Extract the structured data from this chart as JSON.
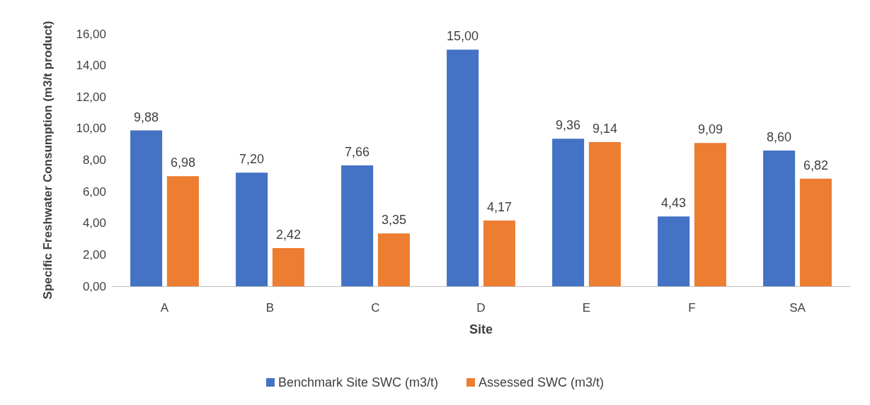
{
  "chart_data": {
    "type": "bar",
    "xlabel": "Site",
    "ylabel": "Specific Freshwater Consumption (m3/t product)",
    "categories": [
      "A",
      "B",
      "C",
      "D",
      "E",
      "F",
      "SA"
    ],
    "series": [
      {
        "name": "Benchmark Site SWC (m3/t)",
        "color": "#4472c4",
        "values": [
          9.88,
          7.2,
          7.66,
          15,
          9.36,
          4.43,
          8.6
        ],
        "value_labels": [
          "9,88",
          "7,20",
          "7,66",
          "15,00",
          "9,36",
          "4,43",
          "8,60"
        ]
      },
      {
        "name": "Assessed SWC (m3/t)",
        "color": "#ed7d31",
        "values": [
          6.98,
          2.42,
          3.35,
          4.17,
          9.14,
          9.09,
          6.82
        ],
        "value_labels": [
          "6,98",
          "2,42",
          "3,35",
          "4,17",
          "9,14",
          "9,09",
          "6,82"
        ]
      }
    ],
    "ylim": [
      0,
      16
    ],
    "yticks": [
      {
        "value": 0,
        "label": "0,00"
      },
      {
        "value": 2,
        "label": "2,00"
      },
      {
        "value": 4,
        "label": "4,00"
      },
      {
        "value": 6,
        "label": "6,00"
      },
      {
        "value": 8,
        "label": "8,00"
      },
      {
        "value": 10,
        "label": "10,00"
      },
      {
        "value": 12,
        "label": "12,00"
      },
      {
        "value": 14,
        "label": "14,00"
      },
      {
        "value": 16,
        "label": "16,00"
      }
    ],
    "grid": false,
    "legend": "bottom"
  }
}
